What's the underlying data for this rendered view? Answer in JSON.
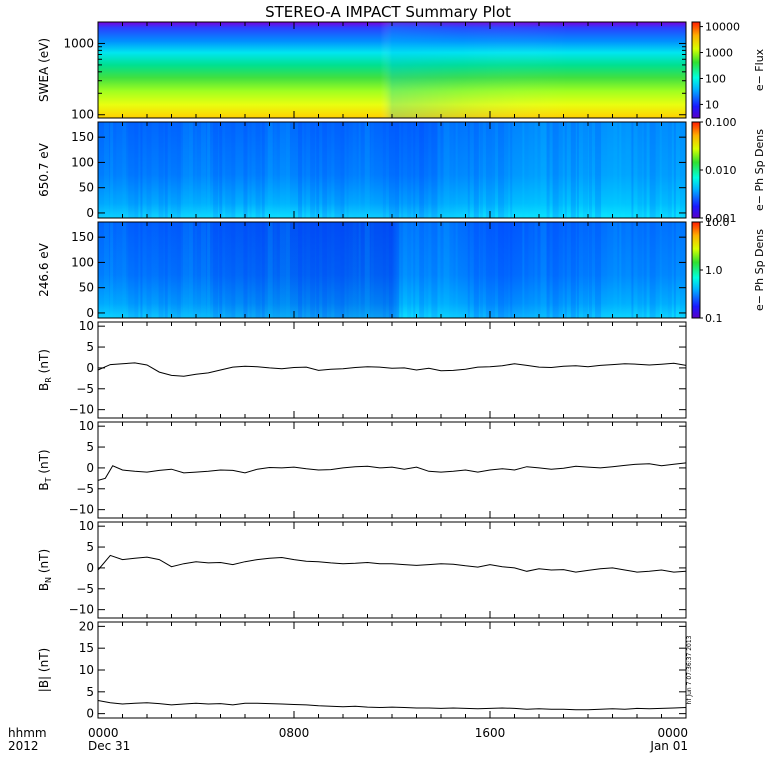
{
  "title": "STEREO-A IMPACT Summary Plot",
  "stamp": "hf Jun 7 07:36:37 2013",
  "time_axis": {
    "prefix_top": "hhmm",
    "prefix_bottom": "2012",
    "ticks": [
      {
        "hour": 0,
        "top": "0000",
        "bottom": "Dec 31"
      },
      {
        "hour": 8,
        "top": "0800",
        "bottom": ""
      },
      {
        "hour": 16,
        "top": "1600",
        "bottom": ""
      },
      {
        "hour": 24,
        "top": "0000",
        "bottom": "Jan 01"
      }
    ],
    "range_hours": [
      0,
      24
    ]
  },
  "chart_data": [
    {
      "type": "heatmap",
      "ylabel": "SWEA (eV)",
      "ylim": [
        90,
        2000
      ],
      "yscale": "log",
      "yticks": [
        {
          "v": 100,
          "label": "100"
        },
        {
          "v": 1000,
          "label": "1000"
        }
      ],
      "colorbar": {
        "label": "e− Flux",
        "scale": "log",
        "range": [
          3,
          15000
        ],
        "ticks": [
          {
            "v": 10,
            "label": "10"
          },
          {
            "v": 100,
            "label": "100"
          },
          {
            "v": 1000,
            "label": "1000"
          },
          {
            "v": 10000,
            "label": "10000"
          }
        ]
      }
    },
    {
      "type": "heatmap",
      "ylabel": "650.7 eV",
      "ylim": [
        -10,
        180
      ],
      "yticks": [
        {
          "v": 0,
          "label": "0"
        },
        {
          "v": 50,
          "label": "50"
        },
        {
          "v": 100,
          "label": "100"
        },
        {
          "v": 150,
          "label": "150"
        }
      ],
      "colorbar": {
        "label": "e− Ph Sp Dens",
        "scale": "log",
        "range": [
          0.001,
          0.1
        ],
        "ticks": [
          {
            "v": 0.001,
            "label": "0.001"
          },
          {
            "v": 0.01,
            "label": "0.010"
          },
          {
            "v": 0.1,
            "label": "0.100"
          }
        ]
      }
    },
    {
      "type": "heatmap",
      "ylabel": "246.6 eV",
      "ylim": [
        -10,
        180
      ],
      "yticks": [
        {
          "v": 0,
          "label": "0"
        },
        {
          "v": 50,
          "label": "50"
        },
        {
          "v": 100,
          "label": "100"
        },
        {
          "v": 150,
          "label": "150"
        }
      ],
      "colorbar": {
        "label": "e− Ph Sp Dens",
        "scale": "log",
        "range": [
          0.1,
          10
        ],
        "ticks": [
          {
            "v": 0.1,
            "label": "0.1"
          },
          {
            "v": 1,
            "label": "1.0"
          },
          {
            "v": 10,
            "label": "10.0"
          }
        ]
      }
    },
    {
      "type": "line",
      "ylabel_main": "B",
      "ylabel_sub": "R",
      "ylabel_unit": " (nT)",
      "ylim": [
        -12,
        11
      ],
      "yticks": [
        {
          "v": -10,
          "label": "−10"
        },
        {
          "v": -5,
          "label": "−5"
        },
        {
          "v": 0,
          "label": "0"
        },
        {
          "v": 5,
          "label": "5"
        },
        {
          "v": 10,
          "label": "10"
        }
      ],
      "x": [
        0,
        0.5,
        1,
        1.5,
        2,
        2.5,
        3,
        3.5,
        4,
        4.5,
        5,
        5.5,
        6,
        6.5,
        7,
        7.5,
        8,
        8.5,
        9,
        9.5,
        10,
        10.5,
        11,
        11.5,
        12,
        12.5,
        13,
        13.5,
        14,
        14.5,
        15,
        15.5,
        16,
        16.5,
        17,
        17.5,
        18,
        18.5,
        19,
        19.5,
        20,
        20.5,
        21,
        21.5,
        22,
        22.5,
        23,
        23.5,
        24
      ],
      "y": [
        -0.5,
        0.8,
        1.0,
        1.2,
        0.7,
        -1.0,
        -1.8,
        -2.0,
        -1.5,
        -1.2,
        -0.5,
        0.2,
        0.4,
        0.3,
        0.0,
        -0.2,
        0.1,
        0.2,
        -0.6,
        -0.3,
        -0.2,
        0.1,
        0.3,
        0.2,
        -0.1,
        0.0,
        -0.5,
        -0.1,
        -0.7,
        -0.6,
        -0.3,
        0.2,
        0.3,
        0.5,
        1.0,
        0.6,
        0.2,
        0.1,
        0.4,
        0.5,
        0.3,
        0.6,
        0.8,
        1.0,
        0.9,
        0.7,
        0.9,
        1.1,
        0.6
      ]
    },
    {
      "type": "line",
      "ylabel_main": "B",
      "ylabel_sub": "T",
      "ylabel_unit": " (nT)",
      "ylim": [
        -12,
        11
      ],
      "yticks": [
        {
          "v": -10,
          "label": "−10"
        },
        {
          "v": -5,
          "label": "−5"
        },
        {
          "v": 0,
          "label": "0"
        },
        {
          "v": 5,
          "label": "5"
        },
        {
          "v": 10,
          "label": "10"
        }
      ],
      "x": [
        0,
        0.3,
        0.6,
        1,
        1.5,
        2,
        2.5,
        3,
        3.5,
        4,
        4.5,
        5,
        5.5,
        6,
        6.5,
        7,
        7.5,
        8,
        8.5,
        9,
        9.5,
        10,
        10.5,
        11,
        11.5,
        12,
        12.5,
        13,
        13.5,
        14,
        14.5,
        15,
        15.5,
        16,
        16.5,
        17,
        17.5,
        18,
        18.5,
        19,
        19.5,
        20,
        20.5,
        21,
        21.5,
        22,
        22.5,
        23,
        23.5,
        24
      ],
      "y": [
        -3.0,
        -2.5,
        0.5,
        -0.5,
        -0.8,
        -1.0,
        -0.6,
        -0.3,
        -1.2,
        -1.0,
        -0.8,
        -0.5,
        -0.6,
        -1.2,
        -0.3,
        0.1,
        0.0,
        0.2,
        -0.2,
        -0.5,
        -0.4,
        0.0,
        0.3,
        0.4,
        0.0,
        0.2,
        -0.3,
        0.2,
        -0.8,
        -1.0,
        -0.8,
        -0.5,
        -1.0,
        -0.5,
        -0.2,
        -0.5,
        0.3,
        0.0,
        -0.3,
        -0.1,
        0.4,
        0.2,
        0.0,
        0.3,
        0.6,
        0.9,
        1.0,
        0.5,
        0.9,
        1.2
      ]
    },
    {
      "type": "line",
      "ylabel_main": "B",
      "ylabel_sub": "N",
      "ylabel_unit": " (nT)",
      "ylim": [
        -12,
        11
      ],
      "yticks": [
        {
          "v": -10,
          "label": "−10"
        },
        {
          "v": -5,
          "label": "−5"
        },
        {
          "v": 0,
          "label": "0"
        },
        {
          "v": 5,
          "label": "5"
        },
        {
          "v": 10,
          "label": "10"
        }
      ],
      "x": [
        0,
        0.5,
        1,
        1.5,
        2,
        2.5,
        3,
        3.5,
        4,
        4.5,
        5,
        5.5,
        6,
        6.5,
        7,
        7.5,
        8,
        8.5,
        9,
        9.5,
        10,
        10.5,
        11,
        11.5,
        12,
        12.5,
        13,
        13.5,
        14,
        14.5,
        15,
        15.5,
        16,
        16.5,
        17,
        17.5,
        18,
        18.5,
        19,
        19.5,
        20,
        20.5,
        21,
        21.5,
        22,
        22.5,
        23,
        23.5,
        24
      ],
      "y": [
        -0.5,
        3.0,
        2.0,
        2.3,
        2.6,
        2.0,
        0.3,
        1.0,
        1.5,
        1.2,
        1.3,
        0.8,
        1.5,
        2.0,
        2.3,
        2.5,
        2.0,
        1.6,
        1.5,
        1.2,
        1.0,
        1.1,
        1.3,
        1.0,
        1.0,
        0.8,
        0.6,
        0.8,
        1.0,
        0.9,
        0.5,
        0.2,
        0.8,
        0.3,
        0.0,
        -0.8,
        -0.2,
        -0.5,
        -0.4,
        -1.0,
        -0.6,
        -0.2,
        0.0,
        -0.5,
        -1.0,
        -0.8,
        -0.5,
        -1.0,
        -0.8
      ]
    },
    {
      "type": "line",
      "ylabel": "|B| (nT)",
      "ylim": [
        -1,
        21
      ],
      "yticks": [
        {
          "v": 0,
          "label": "0"
        },
        {
          "v": 5,
          "label": "5"
        },
        {
          "v": 10,
          "label": "10"
        },
        {
          "v": 15,
          "label": "15"
        },
        {
          "v": 20,
          "label": "20"
        }
      ],
      "x": [
        0,
        0.5,
        1,
        1.5,
        2,
        2.5,
        3,
        3.5,
        4,
        4.5,
        5,
        5.5,
        6,
        6.5,
        7,
        7.5,
        8,
        8.5,
        9,
        9.5,
        10,
        10.5,
        11,
        11.5,
        12,
        12.5,
        13,
        13.5,
        14,
        14.5,
        15,
        15.5,
        16,
        16.5,
        17,
        17.5,
        18,
        18.5,
        19,
        19.5,
        20,
        20.5,
        21,
        21.5,
        22,
        22.5,
        23,
        23.5,
        24
      ],
      "y": [
        3.0,
        2.5,
        2.2,
        2.4,
        2.5,
        2.3,
        2.0,
        2.2,
        2.4,
        2.2,
        2.3,
        2.0,
        2.4,
        2.4,
        2.3,
        2.2,
        2.1,
        2.0,
        1.8,
        1.7,
        1.6,
        1.7,
        1.5,
        1.4,
        1.5,
        1.4,
        1.3,
        1.3,
        1.2,
        1.3,
        1.2,
        1.1,
        1.2,
        1.3,
        1.2,
        1.0,
        1.1,
        1.0,
        1.0,
        0.9,
        0.9,
        1.0,
        1.1,
        1.0,
        1.2,
        1.1,
        1.2,
        1.3,
        1.4
      ]
    }
  ]
}
